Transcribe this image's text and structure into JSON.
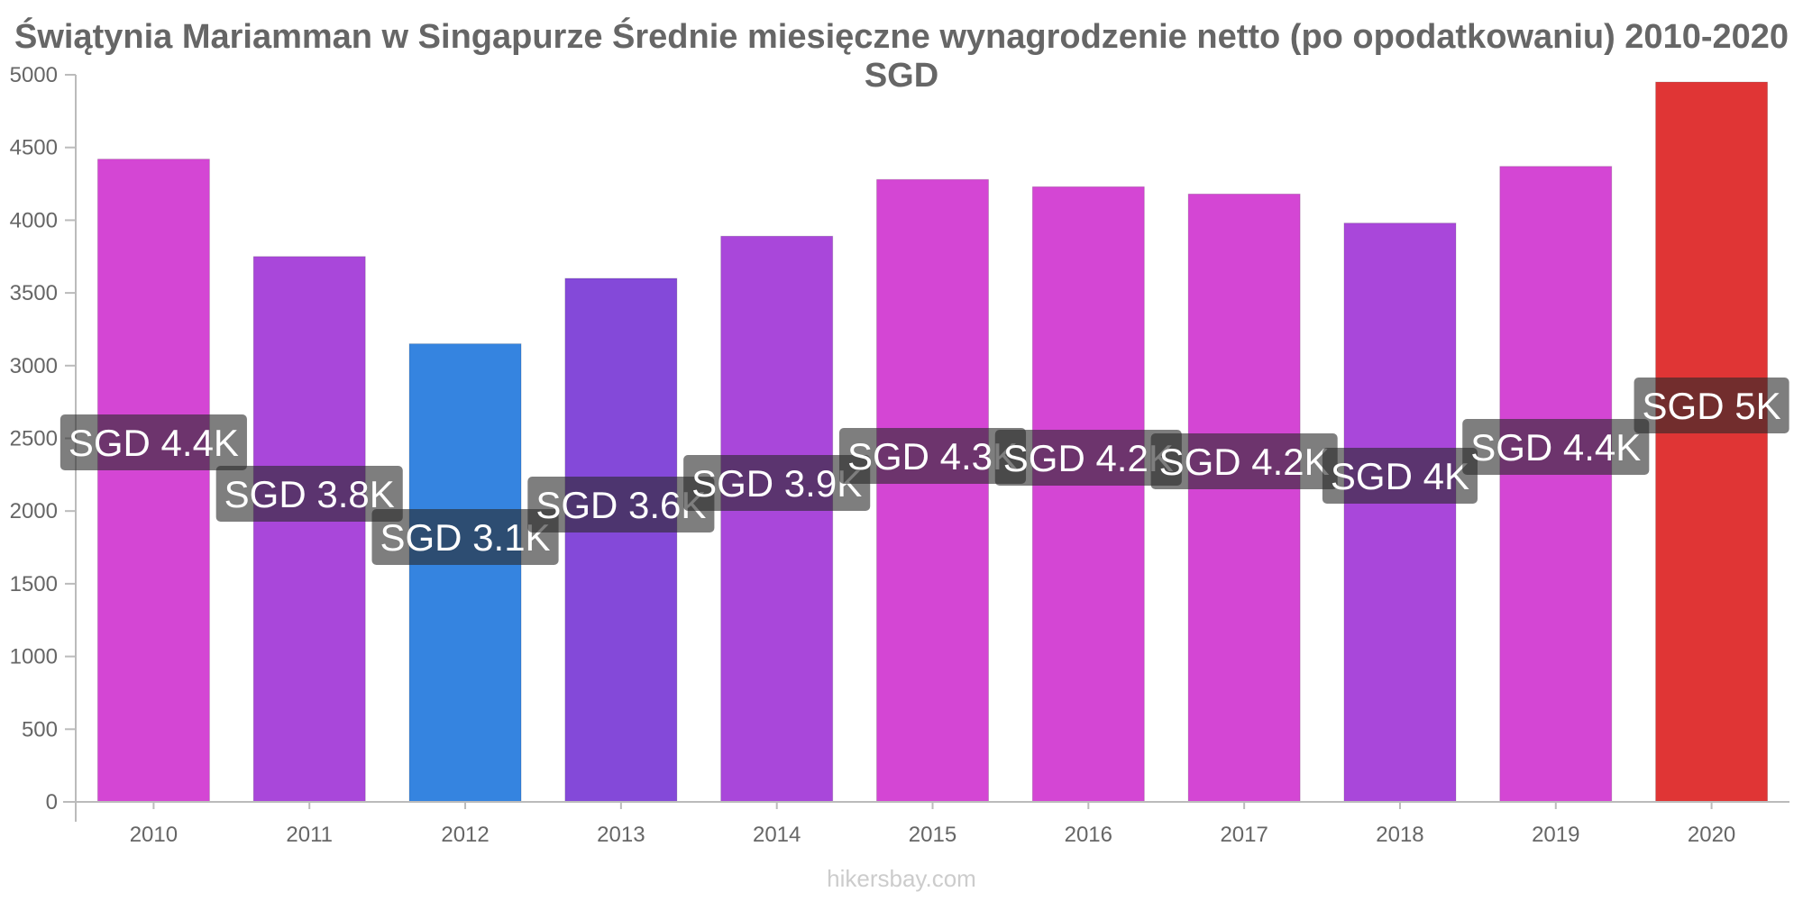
{
  "chart_data": {
    "type": "bar",
    "title": "Świątynia Mariamman w Singapurze Średnie miesięczne wynagrodzenie netto (po opodatkowaniu) 2010-2020 SGD",
    "categories": [
      "2010",
      "2011",
      "2012",
      "2013",
      "2014",
      "2015",
      "2016",
      "2017",
      "2018",
      "2019",
      "2020"
    ],
    "values": [
      4420,
      3750,
      3150,
      3600,
      3890,
      4280,
      4230,
      4180,
      3980,
      4370,
      4950
    ],
    "data_labels": [
      "SGD 4.4K",
      "SGD 3.8K",
      "SGD 3.1K",
      "SGD 3.6K",
      "SGD 3.9K",
      "SGD 4.3K",
      "SGD 4.2K",
      "SGD 4.2K",
      "SGD 4K",
      "SGD 4.4K",
      "SGD 5K"
    ],
    "bar_colors": [
      "#d446d4",
      "#a947da",
      "#3584e0",
      "#8449d9",
      "#a947da",
      "#d446d4",
      "#d446d4",
      "#d446d4",
      "#a947da",
      "#d446d4",
      "#e03535"
    ],
    "ylim": [
      0,
      5000
    ],
    "y_ticks": [
      "0",
      "500",
      "1000",
      "1500",
      "2000",
      "2500",
      "3000",
      "3500",
      "4000",
      "4500",
      "5000"
    ],
    "xlabel": "",
    "ylabel": "",
    "grid": false,
    "legend": "none"
  },
  "watermark": "hikersbay.com"
}
